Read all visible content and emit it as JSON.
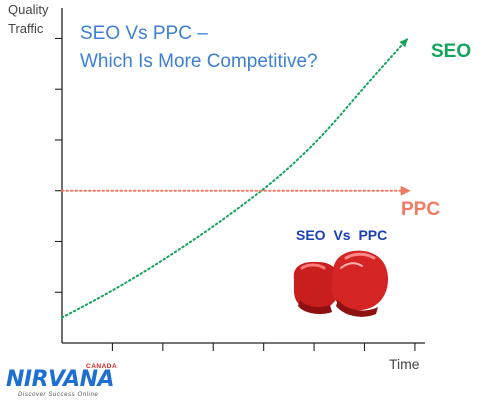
{
  "chart_data": {
    "type": "line",
    "title_line1": "SEO Vs PPC –",
    "title_line2": "Which Is More Competitive?",
    "ylabel_line1": "Quality",
    "ylabel_line2": "Traffic",
    "xlabel": "Time",
    "grid": false,
    "series": [
      {
        "name": "SEO",
        "color": "#14a45c",
        "style": "dotted",
        "trend": "exponential-rise",
        "x": [
          0,
          1,
          2,
          3,
          4,
          5,
          6,
          7,
          8
        ],
        "y": [
          0.5,
          0.95,
          1.45,
          2.0,
          2.6,
          3.25,
          4.05,
          5.05,
          6.0
        ]
      },
      {
        "name": "PPC",
        "color": "#f07a62",
        "style": "dotted",
        "trend": "flat",
        "x": [
          0,
          8
        ],
        "y": [
          3.0,
          3.0
        ]
      }
    ],
    "xlim": [
      0,
      8.4
    ],
    "ylim": [
      0,
      6.6
    ],
    "x_ticks": 7,
    "y_ticks": 6
  },
  "annotation": {
    "vs_label": "SEO  Vs  PPC",
    "icon": "boxing-gloves-icon"
  },
  "logo": {
    "name": "NIRVANA",
    "country": "CANADA",
    "tagline": "Discover Success Online"
  },
  "colors": {
    "title": "#3d7fd6",
    "seo": "#14a45c",
    "ppc": "#f07a62",
    "vs": "#1c3fb7",
    "logo": "#1d6fd1"
  }
}
